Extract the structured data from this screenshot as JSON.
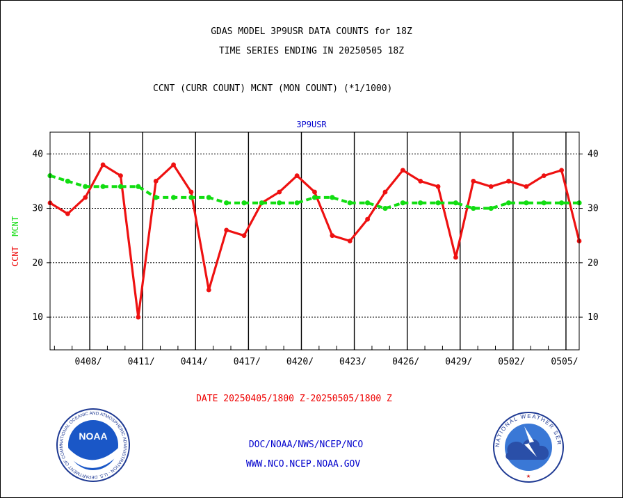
{
  "header": {
    "title_line1": "GDAS MODEL 3P9USR DATA COUNTS for 18Z",
    "title_line2": "TIME SERIES ENDING IN 20250505 18Z",
    "subtitle": "CCNT (CURR COUNT) MCNT (MON COUNT) (*1/1000)",
    "panel_label": "3P9USR"
  },
  "axis": {
    "ylabel_ccnt": "CCNT",
    "ylabel_mcnt": "MCNT"
  },
  "footer": {
    "date_range": "DATE 20250405/1800 Z-20250505/1800 Z",
    "line1": "DOC/NOAA/NWS/NCEP/NCO",
    "line2": "WWW.NCO.NCEP.NOAA.GOV"
  },
  "logos": {
    "left": "NOAA",
    "left_ring_text": "NATIONAL OCEANIC AND ATMOSPHERIC ADMINISTRATION · U.S. DEPARTMENT OF COMMERCE",
    "right_ring_text": "NATIONAL WEATHER SERVICE"
  },
  "colors": {
    "ccnt": "#ee1111",
    "mcnt": "#11dd11",
    "text_blue": "#0000cc"
  },
  "chart_data": {
    "type": "line",
    "title": "GDAS MODEL 3P9USR DATA COUNTS for 18Z",
    "ylabel": "CCNT MCNT",
    "ylim": [
      4,
      44
    ],
    "yticks": [
      10,
      20,
      30,
      40
    ],
    "xlim": [
      0,
      30
    ],
    "x_tick_labels": [
      "0408/",
      "0411/",
      "0414/",
      "0417/",
      "0420/",
      "0423/",
      "0426/",
      "0429/",
      "0502/",
      "0505/"
    ],
    "x_tick_positions": [
      2.25,
      5.25,
      8.25,
      11.25,
      14.25,
      17.25,
      20.25,
      23.25,
      26.25,
      29.25
    ],
    "grid": true,
    "series": [
      {
        "name": "CCNT",
        "color": "#ee1111",
        "x": [
          0,
          1,
          2,
          3,
          4,
          5,
          6,
          7,
          8,
          9,
          10,
          11,
          12,
          13,
          14,
          15,
          16,
          17,
          18,
          19,
          20,
          21,
          22,
          23,
          24,
          25,
          26,
          27,
          28,
          29,
          30
        ],
        "values": [
          31,
          29,
          32,
          38,
          36,
          10,
          35,
          38,
          33,
          15,
          26,
          25,
          31,
          33,
          36,
          33,
          25,
          24,
          28,
          33,
          37,
          35,
          34,
          21,
          35,
          34,
          35,
          34,
          36,
          37,
          24
        ]
      },
      {
        "name": "MCNT",
        "color": "#11dd11",
        "x": [
          0,
          1,
          2,
          3,
          4,
          5,
          6,
          7,
          8,
          9,
          10,
          11,
          12,
          13,
          14,
          15,
          16,
          17,
          18,
          19,
          20,
          21,
          22,
          23,
          24,
          25,
          26,
          27,
          28,
          29,
          30
        ],
        "values": [
          36,
          35,
          34,
          34,
          34,
          34,
          32,
          32,
          32,
          32,
          31,
          31,
          31,
          31,
          31,
          32,
          32,
          31,
          31,
          30,
          31,
          31,
          31,
          31,
          30,
          30,
          31,
          31,
          31,
          31,
          31
        ]
      }
    ]
  }
}
